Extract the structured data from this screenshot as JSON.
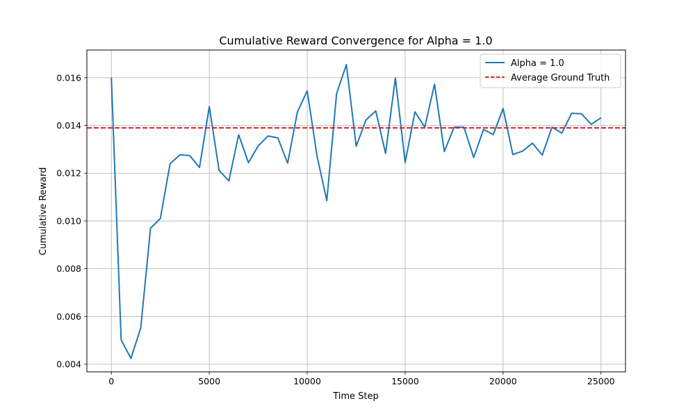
{
  "chart_data": {
    "type": "line",
    "title": "Cumulative Reward Convergence for Alpha = 1.0",
    "xlabel": "Time Step",
    "ylabel": "Cumulative Reward",
    "xlim": [
      -1250,
      26250
    ],
    "ylim": [
      0.00368,
      0.01716
    ],
    "xticks": [
      0,
      5000,
      10000,
      15000,
      20000,
      25000
    ],
    "xtick_labels": [
      "0",
      "5000",
      "10000",
      "15000",
      "20000",
      "25000"
    ],
    "yticks": [
      0.004,
      0.006,
      0.008,
      0.01,
      0.012,
      0.014,
      0.016
    ],
    "ytick_labels": [
      "0.004",
      "0.006",
      "0.008",
      "0.010",
      "0.012",
      "0.014",
      "0.016"
    ],
    "grid": true,
    "legend_position": "top-right",
    "series": [
      {
        "name": "Alpha = 1.0",
        "color": "#1f77b4",
        "style": "solid",
        "x": [
          0,
          500,
          1000,
          1500,
          2000,
          2500,
          3000,
          3500,
          4000,
          4500,
          5000,
          5500,
          6000,
          6500,
          7000,
          7500,
          8000,
          8500,
          9000,
          9500,
          10000,
          10500,
          11000,
          11500,
          12000,
          12500,
          13000,
          13500,
          14000,
          14500,
          15000,
          15500,
          16000,
          16500,
          17000,
          17500,
          18000,
          18500,
          19000,
          19500,
          20000,
          20500,
          21000,
          21500,
          22000,
          22500,
          23000,
          23500,
          24000,
          24500,
          25000
        ],
        "y": [
          0.01601,
          0.00502,
          0.00424,
          0.00552,
          0.0097,
          0.0101,
          0.0124,
          0.01277,
          0.01274,
          0.01224,
          0.01479,
          0.01212,
          0.01168,
          0.01361,
          0.01244,
          0.01315,
          0.01356,
          0.01348,
          0.01242,
          0.01457,
          0.01545,
          0.01272,
          0.01085,
          0.01534,
          0.01655,
          0.01313,
          0.01423,
          0.01461,
          0.01283,
          0.01599,
          0.01245,
          0.01457,
          0.01393,
          0.01573,
          0.01291,
          0.01393,
          0.01393,
          0.01266,
          0.01383,
          0.01362,
          0.01471,
          0.01278,
          0.01293,
          0.01326,
          0.01276,
          0.01393,
          0.01368,
          0.01451,
          0.01449,
          0.01405,
          0.01432
        ]
      },
      {
        "name": "Average Ground Truth",
        "color": "#d62728",
        "style": "dashed",
        "y_constant": 0.0139
      }
    ]
  }
}
